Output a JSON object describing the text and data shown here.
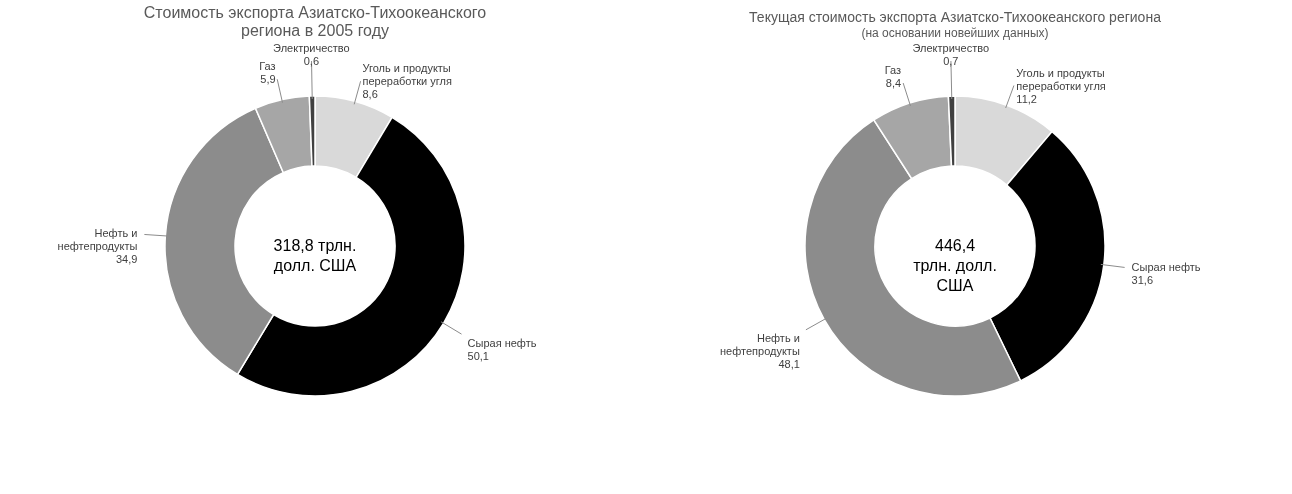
{
  "chart_data": [
    {
      "type": "donut",
      "title": "Стоимость экспорта Азиатско-Тихоокеанского\nрегиона в 2005 году",
      "categories": [
        "Уголь и продукты\nпереработки угля",
        "Сырая нефть",
        "Нефть и\nнефтепродукты",
        "Газ",
        "Электричество"
      ],
      "values": [
        8.6,
        50.1,
        34.9,
        5.9,
        0.6
      ],
      "value_labels": [
        "8,6",
        "50,1",
        "34,9",
        "5,9",
        "0,6"
      ],
      "colors": [
        "#d9d9d9",
        "#000000",
        "#8c8c8c",
        "#a6a6a6",
        "#404040"
      ],
      "annotations": [
        "318,8 трлн.\nдолл. США"
      ],
      "legend": false
    },
    {
      "type": "donut",
      "title": "Текущая стоимость экспорта Азиатско-Тихоокеанского региона",
      "subtitle": "(на основании новейших данных)",
      "categories": [
        "Уголь и продукты\nпереработки угля",
        "Сырая нефть",
        "Нефть и\nнефтепродукты",
        "Газ",
        "Электричество"
      ],
      "values": [
        11.2,
        31.6,
        48.1,
        8.4,
        0.7
      ],
      "value_labels": [
        "11,2",
        "31,6",
        "48,1",
        "8,4",
        "0,7"
      ],
      "colors": [
        "#d9d9d9",
        "#000000",
        "#8c8c8c",
        "#a6a6a6",
        "#404040"
      ],
      "annotations": [
        "446,4\nтрлн. долл.\nСША"
      ],
      "legend": false
    }
  ]
}
